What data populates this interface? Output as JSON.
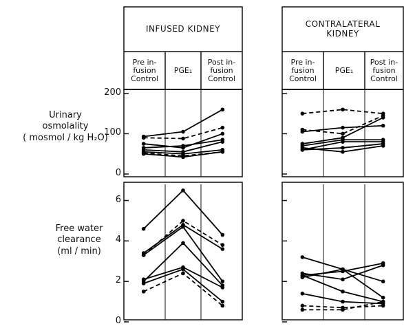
{
  "chart_data": [
    {
      "type": "line",
      "title": "INFUSED KIDNEY",
      "categories": [
        "Pre in-\nfusion\nControl",
        "PGE₁",
        "Post in-\nfusion\nControl"
      ],
      "ylabel": "Urinary\nosmolality\n( mosmol / kg H₂O)",
      "ylim": [
        0,
        210
      ],
      "yticks": [
        0,
        100,
        200
      ],
      "tick_labels": true,
      "color": "#000",
      "series": [
        {
          "values": [
            93,
            105,
            160
          ],
          "dashed": false
        },
        {
          "values": [
            90,
            88,
            115
          ],
          "dashed": true
        },
        {
          "values": [
            75,
            65,
            100
          ],
          "dashed": false
        },
        {
          "values": [
            65,
            70,
            85
          ],
          "dashed": false
        },
        {
          "values": [
            60,
            55,
            80
          ],
          "dashed": false
        },
        {
          "values": [
            55,
            50,
            60
          ],
          "dashed": false
        },
        {
          "values": [
            52,
            45,
            55
          ],
          "dashed": true
        },
        {
          "values": [
            50,
            42,
            55
          ],
          "dashed": false
        }
      ]
    },
    {
      "type": "line",
      "title": "CONTRALATERAL\nKIDNEY",
      "categories": [
        "Pre in-\nfusion\nControl",
        "PGE₁",
        "Post in-\nfusion\nControl"
      ],
      "ylim": [
        0,
        210
      ],
      "yticks": [
        0,
        100,
        200
      ],
      "tick_labels": false,
      "color": "#000",
      "series": [
        {
          "values": [
            150,
            160,
            150
          ],
          "dashed": true
        },
        {
          "values": [
            110,
            100,
            145
          ],
          "dashed": true
        },
        {
          "values": [
            105,
            115,
            120
          ],
          "dashed": false
        },
        {
          "values": [
            75,
            90,
            140
          ],
          "dashed": false
        },
        {
          "values": [
            70,
            85,
            85
          ],
          "dashed": false
        },
        {
          "values": [
            60,
            80,
            80
          ],
          "dashed": false
        },
        {
          "values": [
            60,
            65,
            75
          ],
          "dashed": false
        },
        {
          "values": [
            65,
            55,
            70
          ],
          "dashed": false
        }
      ]
    },
    {
      "type": "line",
      "ylabel": "Free water\nclearance\n(ml / min)",
      "ylim": [
        0,
        6.8
      ],
      "yticks": [
        0,
        2,
        4,
        6
      ],
      "tick_labels": true,
      "color": "#000",
      "series": [
        {
          "values": [
            4.6,
            6.5,
            4.3
          ],
          "dashed": false
        },
        {
          "values": [
            3.3,
            5.0,
            3.8
          ],
          "dashed": true
        },
        {
          "values": [
            3.4,
            4.8,
            3.6
          ],
          "dashed": false
        },
        {
          "values": [
            3.3,
            4.7,
            2.0
          ],
          "dashed": false
        },
        {
          "values": [
            2.0,
            3.9,
            1.8
          ],
          "dashed": false
        },
        {
          "values": [
            2.1,
            2.7,
            1.7
          ],
          "dashed": false
        },
        {
          "values": [
            1.9,
            2.6,
            1.0
          ],
          "dashed": false
        },
        {
          "values": [
            1.5,
            2.4,
            0.8
          ],
          "dashed": true
        }
      ]
    },
    {
      "type": "line",
      "ylim": [
        0,
        6.8
      ],
      "yticks": [
        0,
        2,
        4,
        6
      ],
      "tick_labels": false,
      "color": "#000",
      "series": [
        {
          "values": [
            3.2,
            2.6,
            2.0
          ],
          "dashed": false
        },
        {
          "values": [
            2.3,
            2.5,
            2.9
          ],
          "dashed": false
        },
        {
          "values": [
            2.4,
            2.1,
            2.8
          ],
          "dashed": false
        },
        {
          "values": [
            2.2,
            2.6,
            1.2
          ],
          "dashed": false
        },
        {
          "values": [
            2.3,
            1.5,
            1.0
          ],
          "dashed": false
        },
        {
          "values": [
            1.4,
            1.0,
            0.9
          ],
          "dashed": false
        },
        {
          "values": [
            0.8,
            0.7,
            0.8
          ],
          "dashed": true
        },
        {
          "values": [
            0.6,
            0.6,
            1.0
          ],
          "dashed": true
        }
      ]
    }
  ]
}
